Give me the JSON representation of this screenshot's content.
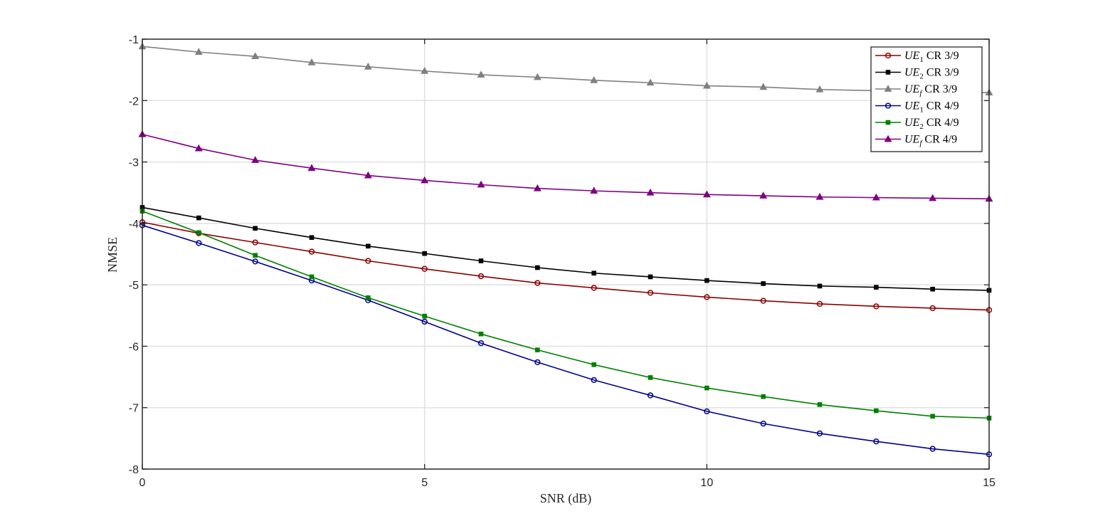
{
  "chart_data": {
    "type": "line",
    "title": "",
    "xlabel": "SNR (dB)",
    "ylabel": "NMSE",
    "xlim": [
      0,
      15
    ],
    "ylim": [
      -8,
      -1
    ],
    "xticks": [
      0,
      5,
      10,
      15
    ],
    "yticks": [
      -8,
      -7,
      -6,
      -5,
      -4,
      -3,
      -2,
      -1
    ],
    "grid": true,
    "legend_position": "top-right",
    "x": [
      0,
      1,
      2,
      3,
      4,
      5,
      6,
      7,
      8,
      9,
      10,
      11,
      12,
      13,
      14,
      15
    ],
    "series": [
      {
        "name": "UE1 CR 3/9",
        "legend": {
          "base": "UE",
          "sub": "1",
          "rest": " CR 3/9"
        },
        "color": "#8b0000",
        "marker": "circle",
        "values": [
          -3.98,
          -4.16,
          -4.31,
          -4.46,
          -4.61,
          -4.74,
          -4.86,
          -4.97,
          -5.05,
          -5.13,
          -5.2,
          -5.26,
          -5.31,
          -5.35,
          -5.38,
          -5.41
        ]
      },
      {
        "name": "UE2 CR 3/9",
        "legend": {
          "base": "UE",
          "sub": "2",
          "rest": " CR 3/9"
        },
        "color": "#000000",
        "marker": "square",
        "values": [
          -3.74,
          -3.91,
          -4.08,
          -4.23,
          -4.37,
          -4.49,
          -4.61,
          -4.72,
          -4.81,
          -4.87,
          -4.93,
          -4.98,
          -5.02,
          -5.04,
          -5.07,
          -5.09
        ]
      },
      {
        "name": "UEf CR 3/9",
        "legend": {
          "base": "UE",
          "sub": "f",
          "rest": " CR 3/9"
        },
        "color": "#808080",
        "marker": "triangle",
        "values": [
          -1.12,
          -1.21,
          -1.28,
          -1.38,
          -1.45,
          -1.52,
          -1.58,
          -1.62,
          -1.67,
          -1.71,
          -1.76,
          -1.78,
          -1.82,
          -1.84,
          -1.86,
          -1.87
        ]
      },
      {
        "name": "UE1 CR 4/9",
        "legend": {
          "base": "UE",
          "sub": "1",
          "rest": " CR 4/9"
        },
        "color": "#00008b",
        "marker": "circle",
        "values": [
          -4.03,
          -4.32,
          -4.62,
          -4.93,
          -5.25,
          -5.6,
          -5.95,
          -6.26,
          -6.55,
          -6.8,
          -7.06,
          -7.26,
          -7.42,
          -7.55,
          -7.67,
          -7.76
        ]
      },
      {
        "name": "UE2 CR 4/9",
        "legend": {
          "base": "UE",
          "sub": "2",
          "rest": " CR 4/9"
        },
        "color": "#008000",
        "marker": "square",
        "values": [
          -3.8,
          -4.15,
          -4.52,
          -4.87,
          -5.21,
          -5.51,
          -5.8,
          -6.06,
          -6.3,
          -6.51,
          -6.68,
          -6.82,
          -6.95,
          -7.05,
          -7.14,
          -7.17
        ]
      },
      {
        "name": "UEf CR 4/9",
        "legend": {
          "base": "UE",
          "sub": "f",
          "rest": " CR 4/9"
        },
        "color": "#800080",
        "marker": "triangle",
        "values": [
          -2.55,
          -2.78,
          -2.97,
          -3.1,
          -3.22,
          -3.3,
          -3.37,
          -3.43,
          -3.47,
          -3.5,
          -3.53,
          -3.55,
          -3.57,
          -3.58,
          -3.59,
          -3.6
        ]
      }
    ]
  }
}
